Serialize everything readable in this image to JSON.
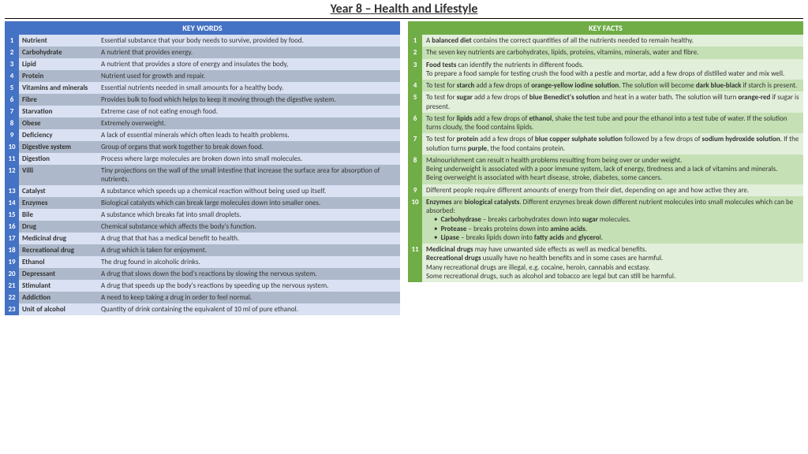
{
  "title": "Year 8 – Health and Lifestyle",
  "keywords_header": "KEY WORDS",
  "keyfacts_header": "KEY FACTS",
  "colors": {
    "blue_header": "#4472c4",
    "blue_dark": "#adb9ca",
    "blue_light": "#d9e1f2",
    "green_header": "#70ad47",
    "green_dark": "#c5e0b4",
    "green_light": "#e2efda"
  },
  "keywords": [
    {
      "n": "1",
      "term": "Nutrient",
      "def": "Essential substance that your body needs to survive, provided by food."
    },
    {
      "n": "2",
      "term": "Carbohydrate",
      "def": "A nutrient that provides energy."
    },
    {
      "n": "3",
      "term": "Lipid",
      "def": "A nutrient that provides a store of energy and insulates the body,"
    },
    {
      "n": "4",
      "term": "Protein",
      "def": "Nutrient used for growth and repair."
    },
    {
      "n": "5",
      "term": "Vitamins and minerals",
      "def": "Essential nutrients needed in small amounts for a healthy body."
    },
    {
      "n": "6",
      "term": "Fibre",
      "def": "Provides bulk to food which helps to keep it moving through the digestive system."
    },
    {
      "n": "7",
      "term": "Starvation",
      "def": "Extreme case of not eating enough food."
    },
    {
      "n": "8",
      "term": "Obese",
      "def": "Extremely overweight."
    },
    {
      "n": "9",
      "term": "Deficiency",
      "def": "A lack of essential minerals which often leads to health problems."
    },
    {
      "n": "10",
      "term": "Digestive system",
      "def": "Group of organs that work together to break down food."
    },
    {
      "n": "11",
      "term": "Digestion",
      "def": "Process where large molecules are broken down into small molecules."
    },
    {
      "n": "12",
      "term": "Villi",
      "def": "Tiny projections on the wall of the small intestine that increase the surface area for absorption of nutrients."
    },
    {
      "n": "13",
      "term": "Catalyst",
      "def": "A substance which speeds up a chemical reaction without being used up itself."
    },
    {
      "n": "14",
      "term": "Enzymes",
      "def": "Biological catalysts which can break large molecules down into smaller ones."
    },
    {
      "n": "15",
      "term": "Bile",
      "def": "A substance which breaks fat into small droplets."
    },
    {
      "n": "16",
      "term": "Drug",
      "def": "Chemical substance which affects the body's function."
    },
    {
      "n": "17",
      "term": "Medicinal drug",
      "def": "A drug that that has a medical benefit to health."
    },
    {
      "n": "18",
      "term": "Recreational drug",
      "def": "A drug which is taken for enjoyment."
    },
    {
      "n": "19",
      "term": "Ethanol",
      "def": "The drug found in alcoholic drinks."
    },
    {
      "n": "20",
      "term": "Depressant",
      "def": "A drug that slows down the bod's reactions by slowing the nervous system."
    },
    {
      "n": "21",
      "term": "Stimulant",
      "def": "A drug that speeds up the body's reactions by speeding up the nervous system."
    },
    {
      "n": "22",
      "term": "Addiction",
      "def": "A need to keep taking a drug in order to feel normal."
    },
    {
      "n": "23",
      "term": "Unit of alcohol",
      "def": "Quantity of drink containing the equivalent of 10 ml of pure ethanol."
    }
  ],
  "facts": [
    {
      "n": "1",
      "html": "A <b>balanced diet</b> contains the correct quantities of all the nutrients needed to remain healthy."
    },
    {
      "n": "2",
      "html": "The seven key nutrients are carbohydrates, lipids, proteins, vitamins, minerals, water and fibre."
    },
    {
      "n": "3",
      "html": "<b>Food tests</b> can identify the nutrients in different foods.<br>To prepare a food sample for testing crush the food with a pestle and mortar, add a few drops of distilled water and mix well."
    },
    {
      "n": "4",
      "html": "To test for <b>starch</b> add a few drops of <b>orange-yellow iodine solution</b>. The solution will become <b>dark blue-black</b> if starch is present."
    },
    {
      "n": "5",
      "html": "To test for <b>sugar</b> add a few drops of <b>blue Benedict's solution</b> and heat in  a water bath. The solution will turn <b>orange-red</b> if sugar is present."
    },
    {
      "n": "6",
      "html": "To test for <b>lipids</b> add a few drops of <b>ethanol</b>, shake the test tube and pour the ethanol into a test tube of water. If the solution turns cloudy, the food contains lipids."
    },
    {
      "n": "7",
      "html": "To test for <b>protein</b> add a few drops of <b>blue copper sulphate solution</b> followed by a few drops of <b>sodium hydroxide solution</b>. If the solution turns <b>purple</b>, the food contains protein."
    },
    {
      "n": "8",
      "html": "Malnourishment can result n health problems resulting from being over or under weight.<br>Being underweight is associated with a poor immune system, lack of energy, tiredness and a lack of vitamins and minerals.<br>Being overweight is associated with heart disease, stroke, diabetes, some cancers."
    },
    {
      "n": "9",
      "html": "Different people require different amounts of energy from their diet, depending on age and how active they are."
    },
    {
      "n": "10",
      "html": "<b>Enzymes</b> are <b>biological catalysts</b>. Different enzymes break down different nutrient molecules into small molecules which can be absorbed:<br><span class='bul'>• &nbsp;<b>Carbohydrase</b> – breaks carbohydrates down into <b>sugar</b> molecules.</span><br><span class='bul'>• &nbsp;<b>Protease</b> – breaks proteins down into <b>amino acids</b>.</span><br><span class='bul'>• &nbsp;<b>Lipase</b> – breaks lipids down into <b>fatty acids</b> and <b>glycero</b>l.</span>"
    },
    {
      "n": "11",
      "html": "<b>Medicinal drugs</b> may have unwanted side effects as well as medical benefits.<br><b>Recreational drugs</b> usually have no health benefits and in some cases are harmful.<br>Many recreational drugs are illegal, e.g. cocaine, heroin, cannabis and ecstasy.<br>Some recreational drugs, such as alcohol and tobacco are legal but can still be harmful."
    }
  ]
}
